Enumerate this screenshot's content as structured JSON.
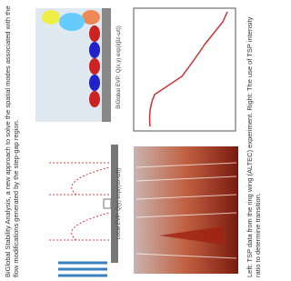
{
  "caption_top": "BiGlobal Stability Analysis, a new approach to solve the spatial modes associated with the flow modifications generated by the step-gap region.",
  "local_label": "Local EVP: Q(y) exp(i(αx-ωt))",
  "biglobal_label": "BiGlobal EVP: Q(x,y) exp(i(βz-ωt))",
  "caption_bottom": "Left: TSP data from the ring wing (ALTEC) experiment. Right: The use of TSP intensity ratio to determine transition."
}
